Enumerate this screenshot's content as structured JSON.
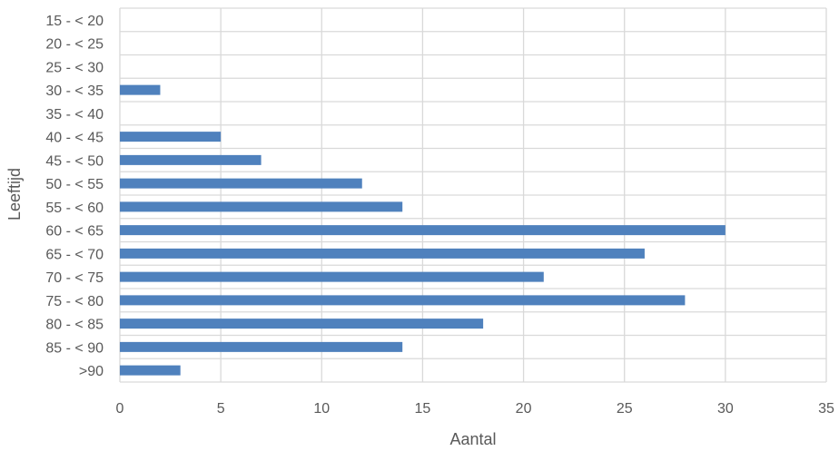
{
  "chart_data": {
    "type": "bar",
    "orientation": "horizontal",
    "categories": [
      "15 - < 20",
      "20 - < 25",
      "25 - < 30",
      "30 - < 35",
      "35 - < 40",
      "40 - < 45",
      "45 - < 50",
      "50 - < 55",
      "55 - < 60",
      "60 - < 65",
      "65 - < 70",
      "70 - < 75",
      "75 - < 80",
      "80 - < 85",
      "85 - < 90",
      ">90"
    ],
    "values": [
      0,
      0,
      0,
      2,
      0,
      5,
      7,
      12,
      14,
      30,
      26,
      21,
      28,
      18,
      14,
      3
    ],
    "xlabel": "Aantal",
    "ylabel": "Leeftijd",
    "xlim": [
      0,
      35
    ],
    "xticks": [
      "0",
      "5",
      "10",
      "15",
      "20",
      "25",
      "30",
      "35"
    ],
    "grid": true,
    "bar_color": "#4f81bd",
    "grid_color": "#d9d9d9"
  }
}
